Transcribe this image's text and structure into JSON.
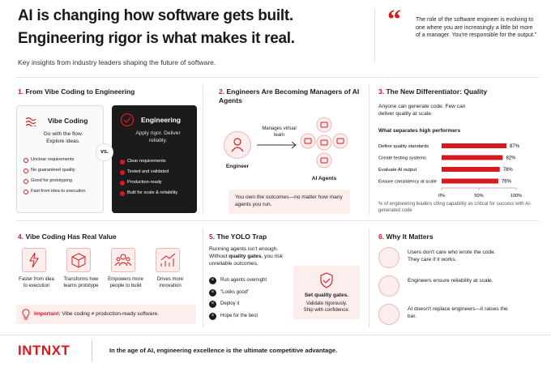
{
  "header": {
    "title_line1": "AI is changing how software gets built.",
    "title_line2": "Engineering rigor is what makes it real.",
    "subtitle": "Key insights from industry leaders shaping the future of software.",
    "quote": "The role of the software engineer is evolving to one where you are increasingly a little bit more of a manager. You're responsible for the output.\""
  },
  "sections": [
    {
      "number": "1.",
      "title": "From Vibe Coding to Engineering",
      "left": {
        "title": "Vibe Coding",
        "tagline": "Go with the flow. Explore ideas.",
        "items": [
          "Unclear requirements",
          "No guaranteed quality",
          "Good for prototyping",
          "Fast from idea to execution"
        ]
      },
      "vs": "vs.",
      "right": {
        "title": "Engineering",
        "tagline": "Apply rigor. Deliver reliably.",
        "items": [
          "Clear requirements",
          "Tested and validated",
          "Production-ready",
          "Built for scale & reliability"
        ]
      }
    },
    {
      "number": "2.",
      "title": "Engineers Are Becoming Managers of AI Agents",
      "engineer": "Engineer",
      "arrow_label": "Manages virtual team",
      "agents": "AI Agents",
      "callout": "You own the outcomes—no matter how many agents you run."
    },
    {
      "number": "3.",
      "title": "The New Differentiator: Quality",
      "lead": "Anyone can generate code. Few can deliver quality at scale."
    },
    {
      "number": "4.",
      "title": "Vibe Coding Has Real Value",
      "items": [
        "Faster from idea to execution",
        "Transforms how teams prototype",
        "Empowers more people to build",
        "Drives more innovation"
      ],
      "important_label": "Important:",
      "important_text": "Vibe coding ≠ production-ready software."
    },
    {
      "number": "5.",
      "title": "The YOLO Trap",
      "lead_1": "Running agents isn't enough. Without ",
      "lead_bold": "quality gates",
      "lead_2": ", you risk unreliable outcomes.",
      "items": [
        "Run agents overnight",
        "\"Looks good\"",
        "Deploy it",
        "Hope for the best"
      ],
      "gate_title": "Set quality gates.",
      "gate_text": "Validate rigorously. Ship with confidence."
    },
    {
      "number": "6.",
      "title": "Why It Matters",
      "items": [
        "Users don't care who wrote the code. They care if it works.",
        "Engineers ensure reliability at scale.",
        "AI doesn't replace engineers—it raises the bar."
      ]
    }
  ],
  "chart_data": {
    "type": "bar",
    "orientation": "horizontal",
    "title": "What separates high performers",
    "categories": [
      "Define quality standards",
      "Create testing systems",
      "Evaluate AI output",
      "Ensure consistency at scale"
    ],
    "values": [
      87,
      82,
      78,
      76
    ],
    "value_labels": [
      "87%",
      "82%",
      "78%",
      "76%"
    ],
    "color": "#d71920",
    "xlim": [
      0,
      100
    ],
    "xticks": [
      {
        "value": 0,
        "label": "0%"
      },
      {
        "value": 50,
        "label": "50%"
      },
      {
        "value": 100,
        "label": "100%"
      }
    ],
    "note": "% of engineering leaders citing capability as critical for success with AI-generated code"
  },
  "footer": {
    "logo": "INTNXT",
    "tagline": "In the age of AI, engineering excellence is the ultimate competitive advantage."
  }
}
